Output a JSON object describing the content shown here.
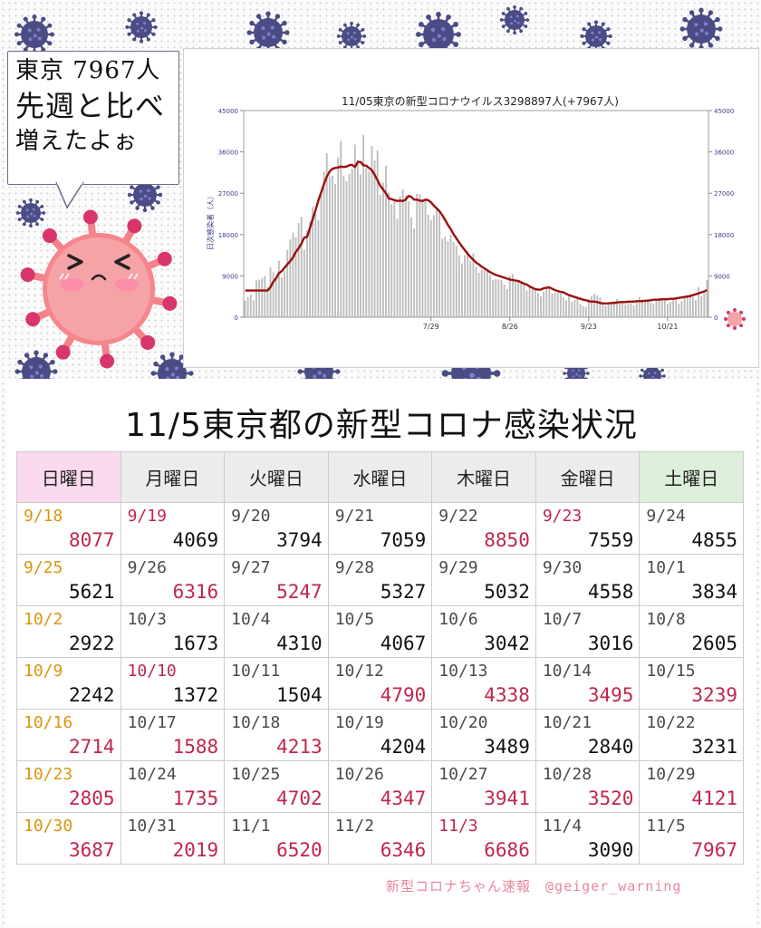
{
  "bubble": {
    "line1": "東京 7967人",
    "line2": "先週と比べ",
    "line3": "増えたよぉ"
  },
  "chart_data": {
    "type": "bar",
    "title": "11/05東京の新型コロナウイルス3298897人(+7967人)",
    "ylabel": "日次感染者（人）",
    "ylim": [
      0,
      45000
    ],
    "yticks": [
      0,
      9000,
      18000,
      27000,
      36000,
      45000
    ],
    "xtick_labels": [
      "7/29",
      "8/26",
      "9/23",
      "10/21"
    ],
    "xtick_index": [
      66,
      94,
      122,
      150
    ],
    "series": [
      {
        "values": [
          3600,
          4400,
          4900,
          3700,
          8000,
          8200,
          8500,
          8900,
          6500,
          10900,
          9800,
          8300,
          12300,
          8700,
          10000,
          14600,
          16900,
          18400,
          17400,
          20500,
          21800,
          14700,
          18900,
          20800,
          24000,
          22500,
          21100,
          26800,
          31700,
          35700,
          30600,
          30800,
          29000,
          34800,
          38400,
          30700,
          29600,
          31200,
          32300,
          37600,
          34300,
          31100,
          39700,
          32500,
          31700,
          37300,
          34200,
          36300,
          26700,
          29300,
          33000,
          27100,
          24600,
          25200,
          21400,
          26300,
          27900,
          26500,
          25200,
          21700,
          19300,
          26900,
          26800,
          25800,
          25500,
          22300,
          21200,
          22200,
          23400,
          22900,
          17100,
          17600,
          16500,
          17900,
          16400,
          15600,
          13500,
          11700,
          13500,
          14400,
          12300,
          13900,
          11000,
          9700,
          10300,
          10200,
          10000,
          9300,
          8100,
          8300,
          8200,
          8100,
          7100,
          6100,
          9000,
          9400,
          7900,
          8000,
          7600,
          7100,
          5800,
          6600,
          6400,
          6300,
          5300,
          4500,
          5600,
          6500,
          6300,
          5200,
          5300,
          5300,
          5100,
          4300,
          3700,
          4500,
          3400,
          3800,
          4100,
          2900,
          2400,
          2200,
          4000,
          4600,
          5100,
          4800,
          4300,
          2800,
          2500,
          3000,
          3200,
          3500,
          3900,
          3100,
          3300,
          2800,
          3400,
          3100,
          2600,
          3600,
          4400,
          3800,
          3500,
          3900,
          3200,
          2900,
          3500,
          4200,
          3900,
          3700,
          2900,
          3300,
          4100,
          4300,
          2900,
          3500,
          4200,
          4800,
          5100,
          4400,
          3700,
          6500,
          4600,
          5700,
          8100
        ]
      },
      {
        "values": [
          5800,
          5800,
          5800,
          5800,
          5800,
          5800,
          5800,
          5800,
          5800,
          6500,
          7700,
          8500,
          9600,
          10000,
          10800,
          11500,
          12200,
          13000,
          14200,
          15000,
          16000,
          17300,
          17500,
          19400,
          21400,
          23300,
          25400,
          27200,
          29000,
          30600,
          31700,
          32300,
          32500,
          32600,
          32800,
          32700,
          32800,
          33100,
          33200,
          32700,
          33800,
          33800,
          33100,
          33000,
          32500,
          32000,
          31000,
          29800,
          28600,
          27800,
          27000,
          25900,
          25700,
          25500,
          25300,
          25400,
          25300,
          25600,
          26400,
          26200,
          25600,
          25600,
          25400,
          25300,
          25600,
          25500,
          25000,
          24300,
          23700,
          23100,
          22200,
          21200,
          20100,
          19200,
          18100,
          17200,
          16300,
          15400,
          14600,
          13800,
          13100,
          12500,
          11900,
          11500,
          11000,
          10600,
          10200,
          9800,
          9500,
          9200,
          9000,
          8800,
          8600,
          8400,
          8200,
          8100,
          8000,
          7900,
          7600,
          7300,
          7100,
          6700,
          6400,
          6100,
          6000,
          6000,
          6300,
          6400,
          6500,
          6200,
          5900,
          5700,
          5500,
          5400,
          5100,
          4800,
          4600,
          4400,
          4200,
          4000,
          3800,
          3700,
          3500,
          3400,
          3400,
          3300,
          3100,
          3000,
          3000,
          3000,
          3100,
          3100,
          3200,
          3300,
          3300,
          3300,
          3400,
          3400,
          3400,
          3500,
          3500,
          3500,
          3600,
          3600,
          3700,
          3800,
          3800,
          3800,
          3900,
          3900,
          3900,
          4000,
          4000,
          4100,
          4200,
          4300,
          4400,
          4500,
          4600,
          4800,
          5000,
          5200,
          5400,
          5600,
          5900
        ]
      }
    ],
    "grid": false,
    "legend": "none"
  },
  "table": {
    "title": "11/5東京都の新型コロナ感染状況",
    "headers": [
      "日曜日",
      "月曜日",
      "火曜日",
      "水曜日",
      "木曜日",
      "金曜日",
      "土曜日"
    ],
    "rows": [
      [
        {
          "date": "9/18",
          "count": "8077",
          "dc": "orange",
          "nc": "red"
        },
        {
          "date": "9/19",
          "count": "4069",
          "dc": "red",
          "nc": "black"
        },
        {
          "date": "9/20",
          "count": "3794",
          "dc": "grey",
          "nc": "black"
        },
        {
          "date": "9/21",
          "count": "7059",
          "dc": "grey",
          "nc": "black"
        },
        {
          "date": "9/22",
          "count": "8850",
          "dc": "grey",
          "nc": "red"
        },
        {
          "date": "9/23",
          "count": "7559",
          "dc": "red",
          "nc": "black"
        },
        {
          "date": "9/24",
          "count": "4855",
          "dc": "grey",
          "nc": "black"
        }
      ],
      [
        {
          "date": "9/25",
          "count": "5621",
          "dc": "orange",
          "nc": "black"
        },
        {
          "date": "9/26",
          "count": "6316",
          "dc": "grey",
          "nc": "red"
        },
        {
          "date": "9/27",
          "count": "5247",
          "dc": "grey",
          "nc": "red"
        },
        {
          "date": "9/28",
          "count": "5327",
          "dc": "grey",
          "nc": "black"
        },
        {
          "date": "9/29",
          "count": "5032",
          "dc": "grey",
          "nc": "black"
        },
        {
          "date": "9/30",
          "count": "4558",
          "dc": "grey",
          "nc": "black"
        },
        {
          "date": "10/1",
          "count": "3834",
          "dc": "grey",
          "nc": "black"
        }
      ],
      [
        {
          "date": "10/2",
          "count": "2922",
          "dc": "orange",
          "nc": "black"
        },
        {
          "date": "10/3",
          "count": "1673",
          "dc": "grey",
          "nc": "black"
        },
        {
          "date": "10/4",
          "count": "4310",
          "dc": "grey",
          "nc": "black"
        },
        {
          "date": "10/5",
          "count": "4067",
          "dc": "grey",
          "nc": "black"
        },
        {
          "date": "10/6",
          "count": "3042",
          "dc": "grey",
          "nc": "black"
        },
        {
          "date": "10/7",
          "count": "3016",
          "dc": "grey",
          "nc": "black"
        },
        {
          "date": "10/8",
          "count": "2605",
          "dc": "grey",
          "nc": "black"
        }
      ],
      [
        {
          "date": "10/9",
          "count": "2242",
          "dc": "orange",
          "nc": "black"
        },
        {
          "date": "10/10",
          "count": "1372",
          "dc": "red",
          "nc": "black"
        },
        {
          "date": "10/11",
          "count": "1504",
          "dc": "grey",
          "nc": "black"
        },
        {
          "date": "10/12",
          "count": "4790",
          "dc": "grey",
          "nc": "red"
        },
        {
          "date": "10/13",
          "count": "4338",
          "dc": "grey",
          "nc": "red"
        },
        {
          "date": "10/14",
          "count": "3495",
          "dc": "grey",
          "nc": "red"
        },
        {
          "date": "10/15",
          "count": "3239",
          "dc": "grey",
          "nc": "red"
        }
      ],
      [
        {
          "date": "10/16",
          "count": "2714",
          "dc": "orange",
          "nc": "red"
        },
        {
          "date": "10/17",
          "count": "1588",
          "dc": "grey",
          "nc": "red"
        },
        {
          "date": "10/18",
          "count": "4213",
          "dc": "grey",
          "nc": "red"
        },
        {
          "date": "10/19",
          "count": "4204",
          "dc": "grey",
          "nc": "black"
        },
        {
          "date": "10/20",
          "count": "3489",
          "dc": "grey",
          "nc": "black"
        },
        {
          "date": "10/21",
          "count": "2840",
          "dc": "grey",
          "nc": "black"
        },
        {
          "date": "10/22",
          "count": "3231",
          "dc": "grey",
          "nc": "black"
        }
      ],
      [
        {
          "date": "10/23",
          "count": "2805",
          "dc": "orange",
          "nc": "red"
        },
        {
          "date": "10/24",
          "count": "1735",
          "dc": "grey",
          "nc": "red"
        },
        {
          "date": "10/25",
          "count": "4702",
          "dc": "grey",
          "nc": "red"
        },
        {
          "date": "10/26",
          "count": "4347",
          "dc": "grey",
          "nc": "red"
        },
        {
          "date": "10/27",
          "count": "3941",
          "dc": "grey",
          "nc": "red"
        },
        {
          "date": "10/28",
          "count": "3520",
          "dc": "grey",
          "nc": "red"
        },
        {
          "date": "10/29",
          "count": "4121",
          "dc": "grey",
          "nc": "red"
        }
      ],
      [
        {
          "date": "10/30",
          "count": "3687",
          "dc": "orange",
          "nc": "red"
        },
        {
          "date": "10/31",
          "count": "2019",
          "dc": "grey",
          "nc": "red"
        },
        {
          "date": "11/1",
          "count": "6520",
          "dc": "grey",
          "nc": "red"
        },
        {
          "date": "11/2",
          "count": "6346",
          "dc": "grey",
          "nc": "red"
        },
        {
          "date": "11/3",
          "count": "6686",
          "dc": "red",
          "nc": "red"
        },
        {
          "date": "11/4",
          "count": "3090",
          "dc": "grey",
          "nc": "black"
        },
        {
          "date": "11/5",
          "count": "7967",
          "dc": "grey",
          "nc": "red"
        }
      ]
    ]
  },
  "footer": {
    "credit": "新型コロナちゃん速報　@geiger_warning"
  },
  "colors": {
    "red": "#c0264b",
    "black": "#111111",
    "orange": "#d9960f",
    "grey": "#4a4a4a",
    "line": "#9a1010",
    "bar": "#bdbdbd",
    "axis": "#3a3a8a"
  }
}
